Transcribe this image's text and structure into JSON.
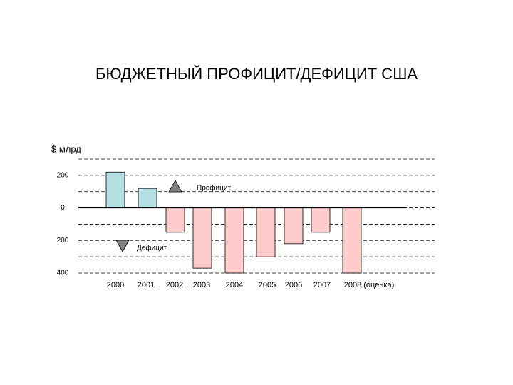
{
  "chart_data": {
    "type": "bar",
    "title": "БЮДЖЕТНЫЙ ПРОФИЦИТ/ДЕФИЦИТ США",
    "y_label": "$ млрд",
    "categories": [
      "2000",
      "2001",
      "2002",
      "2003",
      "2004",
      "2005",
      "2006",
      "2007",
      "2008 (оценка)"
    ],
    "values": [
      220,
      120,
      -150,
      -370,
      -400,
      -300,
      -220,
      -150,
      -400
    ],
    "colors": [
      "#b4e0e3",
      "#b4e0e3",
      "#ffcccc",
      "#ffcccc",
      "#ffcccc",
      "#ffcccc",
      "#ffcccc",
      "#ffcccc",
      "#ffcccc"
    ],
    "ylim": [
      -400,
      300
    ],
    "yticks": [
      200,
      0,
      {
        "value": -200,
        "label": "200"
      },
      {
        "value": -400,
        "label": "400"
      }
    ],
    "minor_yticks": [
      300,
      100,
      -100,
      -300
    ],
    "grid": true,
    "legend": [
      {
        "label": "Профицит",
        "marker": "triangle-up",
        "color": "#808080"
      },
      {
        "label": "Дефицит",
        "marker": "triangle-down",
        "color": "#808080"
      }
    ]
  }
}
